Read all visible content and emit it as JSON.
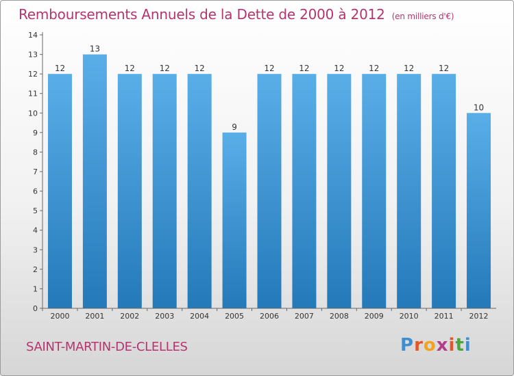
{
  "chart_data": {
    "type": "bar",
    "title": "Remboursements Annuels de la Dette de 2000 à 2012",
    "subtitle": "(en milliers d'€)",
    "categories": [
      "2000",
      "2001",
      "2002",
      "2003",
      "2004",
      "2005",
      "2006",
      "2007",
      "2008",
      "2009",
      "2010",
      "2011",
      "2012"
    ],
    "values": [
      12,
      13,
      12,
      12,
      12,
      9,
      12,
      12,
      12,
      12,
      12,
      12,
      10
    ],
    "data_labels": [
      "12",
      "13",
      "12",
      "12",
      "12",
      "9",
      "12",
      "12",
      "12",
      "12",
      "12",
      "12",
      "10"
    ],
    "yticks": [
      0,
      1,
      2,
      3,
      4,
      5,
      6,
      7,
      8,
      9,
      10,
      11,
      12,
      13,
      14
    ],
    "ylim": [
      0,
      14
    ],
    "xlabel": "",
    "ylabel": "",
    "grid": false,
    "colors": {
      "bar_light": "#5aaee8",
      "bar_dark": "#2479b9",
      "text": "#b5336f"
    }
  },
  "footer": {
    "commune": "SAINT-MARTIN-DE-CLELLES",
    "logo_letters": [
      "P",
      "r",
      "o",
      "x",
      "i",
      "t",
      "i"
    ],
    "logo_colors": [
      "#3f8fd0",
      "#e2562b",
      "#f2a31b",
      "#b13d8b",
      "#e2562b",
      "#4aa63c",
      "#3f8fd0"
    ]
  }
}
